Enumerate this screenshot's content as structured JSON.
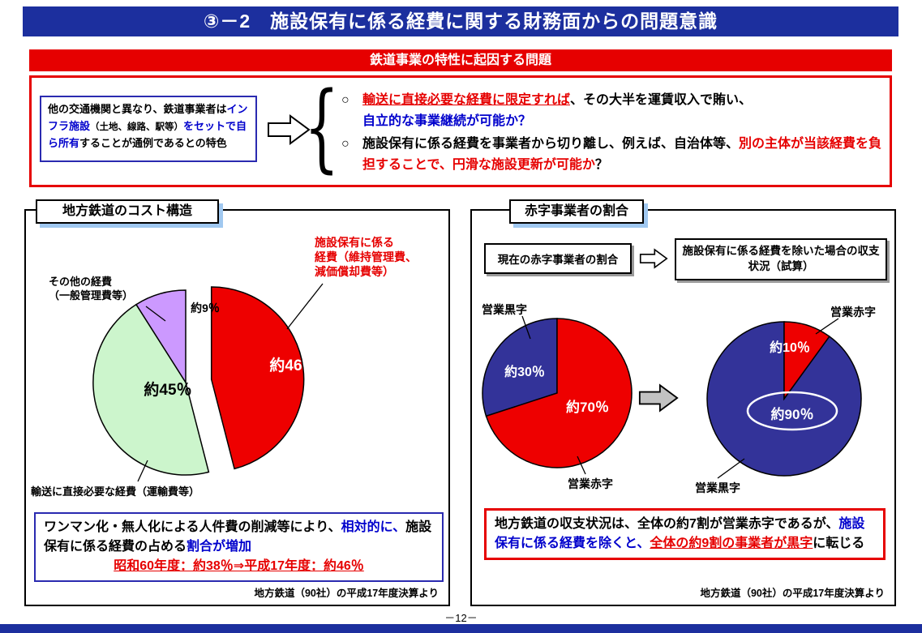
{
  "page": {
    "title": "③－2　施設保有に係る経費に関する財務面からの問題意識",
    "footer": "－12－"
  },
  "colors": {
    "banner-blue": "#1c2f9e",
    "emphasis-blue": "#0000cc",
    "emphasis-red": "#e60000",
    "shadow-blue": "#a0c8f0",
    "pie-red": "#ee0000",
    "pie-green": "#ccf5cc",
    "pie-purple": "#cc99ff",
    "pie-navy": "#333399"
  },
  "problem": {
    "banner": "鉄道事業の特性に起因する問題",
    "brace": "{",
    "feature": {
      "s1": "他の交通機関と異なり、鉄道事業者は",
      "s2": "インフラ施設",
      "s3": "（土地、線路、駅等）",
      "s4": "をセットで自ら所有",
      "s5": "することが通例であるとの特色"
    },
    "bullet1": {
      "marker": "○",
      "s1": "輸送に直接必要な経費に限定すれば",
      "s2": "、その大半を運賃収入で賄い、",
      "s3": "自立的な事業継続が可能か？"
    },
    "bullet2": {
      "marker": "○",
      "s1": "施設保有に係る経費を事業者から切り離し、例えば、自治体等、",
      "s2": "別の主体が当該経費を負担することで、円滑な施設更新が可能か",
      "s3": "？"
    }
  },
  "cost_panel": {
    "title": "地方鉄道のコスト構造",
    "facility_label": [
      "施設保有に係る",
      "経費（維持管理費、",
      "減価償却費等）"
    ],
    "other_label": [
      "その他の経費",
      "（一般管理費等）"
    ],
    "transport_label": "輸送に直接必要な経費（運輸費等）",
    "note": {
      "s1": "ワンマン化・無人化による人件費の削減等により、",
      "s2": "相対的に、",
      "s3": "施設保有に係る経費",
      "s4": "の占める",
      "s5": "割合が増加",
      "comparison": "昭和60年度：約38％⇒平成17年度：約46％"
    },
    "caption": "地方鉄道（90社）の平成17年度決算より"
  },
  "deficit_panel": {
    "title": "赤字事業者の割合",
    "header_left": "現在の赤字事業者の割合",
    "header_right": "施設保有に係る経費を除いた場合の収支状況（試算）",
    "pie1_labels": {
      "black": "営業黒字",
      "red": "営業赤字"
    },
    "pie2_labels": {
      "red": "営業赤字",
      "black": "営業黒字"
    },
    "note": {
      "s1": "地方鉄道の収支状況は、全体の約7割が営業赤字であるが、",
      "s2": "施設保有に係る経費を除くと、",
      "s3": "全体の約9割の事業者が黒字",
      "s4": "に転じる"
    },
    "caption": "地方鉄道（90社）の平成17年度決算より"
  },
  "chart_data": [
    {
      "type": "pie",
      "title": "地方鉄道のコスト構造",
      "unit": "%",
      "source": "地方鉄道（90社）の平成17年度決算より",
      "slices": [
        {
          "label": "施設保有に係る経費（維持管理費、減価償却費等）",
          "value": 46,
          "pct_label": "約46％",
          "color": "#ee0000",
          "exploded": true
        },
        {
          "label": "輸送に直接必要な経費（運輸費等）",
          "value": 45,
          "pct_label": "約45％",
          "color": "#ccf5cc"
        },
        {
          "label": "その他の経費（一般管理費等）",
          "value": 9,
          "pct_label": "約9％",
          "color": "#cc99ff"
        }
      ]
    },
    {
      "type": "pie",
      "title": "現在の赤字事業者の割合",
      "unit": "%",
      "slices": [
        {
          "label": "営業赤字",
          "value": 70,
          "pct_label": "約70％",
          "color": "#ee0000"
        },
        {
          "label": "営業黒字",
          "value": 30,
          "pct_label": "約30％",
          "color": "#333399"
        }
      ]
    },
    {
      "type": "pie",
      "title": "施設保有に係る経費を除いた場合の収支状況（試算）",
      "unit": "%",
      "slices": [
        {
          "label": "営業赤字",
          "value": 10,
          "pct_label": "約10％",
          "color": "#ee0000"
        },
        {
          "label": "営業黒字",
          "value": 90,
          "pct_label": "約90％",
          "color": "#333399"
        }
      ]
    }
  ]
}
